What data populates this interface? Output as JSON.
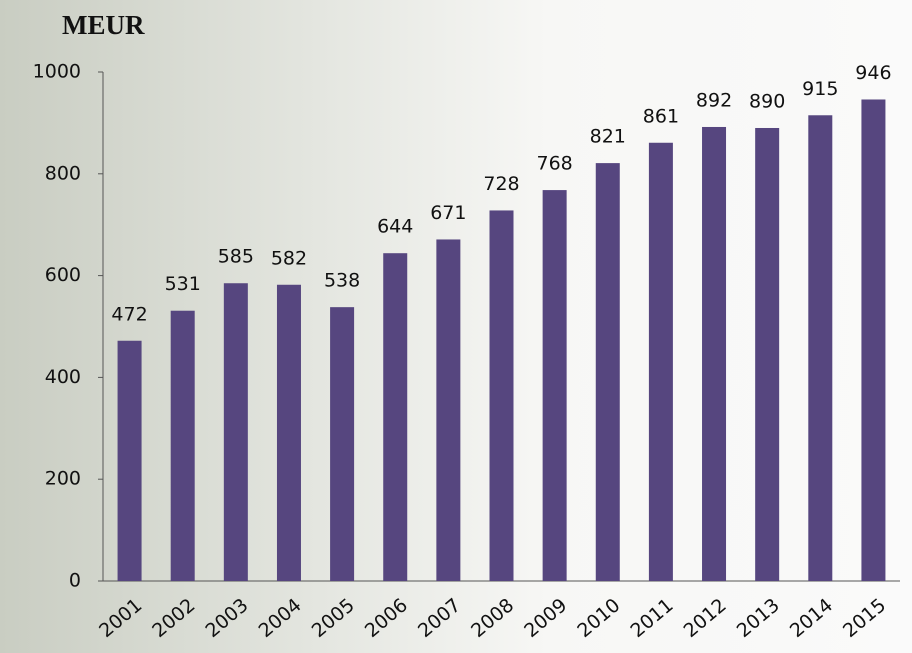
{
  "chart_data": {
    "type": "bar",
    "title": "MEUR",
    "categories": [
      "2001",
      "2002",
      "2003",
      "2004",
      "2005",
      "2006",
      "2007",
      "2008",
      "2009",
      "2010",
      "2011",
      "2012",
      "2013",
      "2014",
      "2015"
    ],
    "values": [
      472,
      531,
      585,
      582,
      538,
      644,
      671,
      728,
      768,
      821,
      861,
      892,
      890,
      915,
      946
    ],
    "color": "#56467f",
    "ylim": [
      0,
      1000
    ],
    "yticks": [
      0,
      200,
      400,
      600,
      800,
      1000
    ],
    "grid": false
  }
}
